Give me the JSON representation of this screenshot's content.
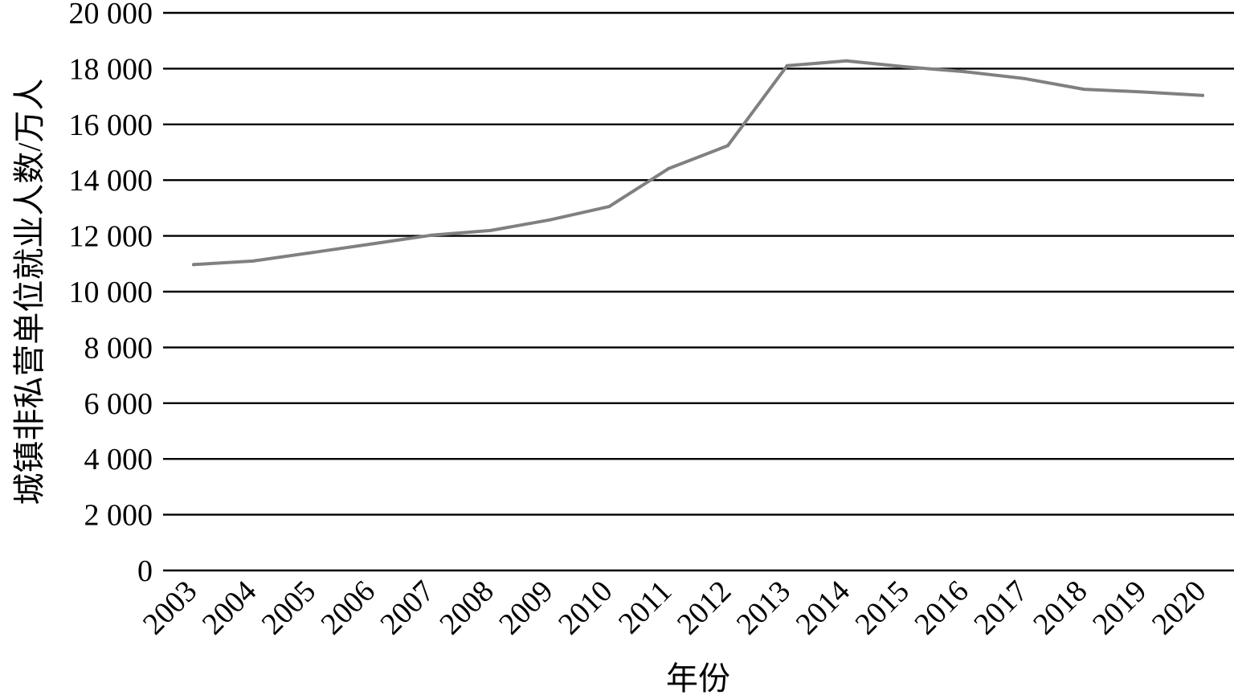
{
  "chart_data": {
    "type": "line",
    "title": "",
    "xlabel": "年份",
    "ylabel": "城镇非私营单位就业人数/万人",
    "ylim": [
      0,
      20000
    ],
    "yticks": [
      0,
      2000,
      4000,
      6000,
      8000,
      10000,
      12000,
      14000,
      16000,
      18000,
      20000
    ],
    "ytick_labels": [
      "0",
      "2 000",
      "4 000",
      "6 000",
      "8 000",
      "10 000",
      "12 000",
      "14 000",
      "16 000",
      "18 000",
      "20 000"
    ],
    "grid": true,
    "legend": "none",
    "line_color": "#808080",
    "categories": [
      "2003",
      "2004",
      "2005",
      "2006",
      "2007",
      "2008",
      "2009",
      "2010",
      "2011",
      "2012",
      "2013",
      "2014",
      "2015",
      "2016",
      "2017",
      "2018",
      "2019",
      "2020"
    ],
    "series": [
      {
        "values": [
          10970,
          11099,
          11404,
          11713,
          12024,
          12193,
          12573,
          13052,
          14413,
          15236,
          18108,
          18278,
          18063,
          17888,
          17644,
          17258,
          17162,
          17039
        ]
      }
    ]
  }
}
